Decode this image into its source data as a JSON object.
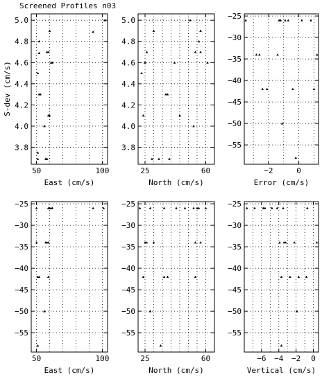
{
  "title": "Screened Profiles n03",
  "chart_data": [
    {
      "type": "scatter",
      "xlabel": "East (cm/s)",
      "ylabel": "S-dev (cm/s)",
      "xlim": [
        46,
        104
      ],
      "ylim": [
        3.64,
        5.06
      ],
      "xticks": [
        50,
        100
      ],
      "xtick_labels": [
        "50",
        "100"
      ],
      "xgrid": [
        50,
        60,
        70,
        80,
        90,
        100
      ],
      "yticks": [
        3.8,
        4.0,
        4.2,
        4.4,
        4.6,
        4.8,
        5.0
      ],
      "ytick_labels": [
        "3.8",
        "4.0",
        "4.2",
        "4.4",
        "4.6",
        "4.8",
        "5.0"
      ],
      "points": [
        [
          51,
          3.69
        ],
        [
          51,
          3.75
        ],
        [
          51,
          4.5
        ],
        [
          52,
          4.3
        ],
        [
          52,
          4.69
        ],
        [
          52,
          4.8
        ],
        [
          53,
          4.3
        ],
        [
          56,
          4.0
        ],
        [
          57,
          3.69
        ],
        [
          58,
          3.69
        ],
        [
          58,
          4.7
        ],
        [
          59,
          4.1
        ],
        [
          59,
          4.7
        ],
        [
          60,
          4.1
        ],
        [
          60,
          4.9
        ],
        [
          61,
          4.6
        ],
        [
          62,
          4.6
        ],
        [
          93,
          4.89
        ],
        [
          102,
          5.0
        ]
      ]
    },
    {
      "type": "scatter",
      "xlabel": "North (cm/s)",
      "ylabel": "",
      "xlim": [
        21,
        65
      ],
      "ylim": [
        3.64,
        5.06
      ],
      "xticks": [
        25,
        60
      ],
      "xtick_labels": [
        "25",
        "60"
      ],
      "xgrid": [
        25,
        30,
        35,
        40,
        45,
        50,
        55,
        60
      ],
      "yticks": [
        3.8,
        4.0,
        4.2,
        4.4,
        4.6,
        4.8,
        5.0
      ],
      "ytick_labels": [
        "3.8",
        "4.0",
        "4.2",
        "4.4",
        "4.6",
        "4.8",
        "5.0"
      ],
      "points": [
        [
          23,
          4.5
        ],
        [
          24,
          4.1
        ],
        [
          25,
          4.6
        ],
        [
          26,
          4.7
        ],
        [
          29,
          3.69
        ],
        [
          30,
          4.9
        ],
        [
          33,
          3.69
        ],
        [
          37,
          4.3
        ],
        [
          38,
          4.3
        ],
        [
          39,
          3.69
        ],
        [
          42,
          4.6
        ],
        [
          45,
          4.1
        ],
        [
          51,
          5.0
        ],
        [
          53,
          4.0
        ],
        [
          54,
          4.7
        ],
        [
          56,
          4.8
        ],
        [
          57,
          4.9
        ],
        [
          57,
          4.7
        ],
        [
          61,
          4.6
        ]
      ]
    },
    {
      "type": "scatter",
      "xlabel": "Error (cm/s)",
      "ylabel": "",
      "xlim": [
        -3.6,
        1.3
      ],
      "ylim": [
        -59.5,
        -24.5
      ],
      "xticks": [
        -2,
        0
      ],
      "xtick_labels": [
        "−2",
        "0"
      ],
      "xgrid": [
        -3,
        -2,
        -1,
        0,
        1
      ],
      "yticks": [
        -55,
        -50,
        -45,
        -40,
        -35,
        -30,
        -25
      ],
      "ytick_labels": [
        "−55",
        "−50",
        "−45",
        "−40",
        "−35",
        "−30",
        "−25"
      ],
      "points": [
        [
          -3.5,
          -26
        ],
        [
          -2.8,
          -34
        ],
        [
          -2.6,
          -34
        ],
        [
          -2.4,
          -42
        ],
        [
          -2.1,
          -42
        ],
        [
          -1.4,
          -34
        ],
        [
          -1.3,
          -26
        ],
        [
          -1.2,
          -26
        ],
        [
          -1.1,
          -50
        ],
        [
          -0.9,
          -26
        ],
        [
          -0.7,
          -26
        ],
        [
          -0.4,
          -42
        ],
        [
          -0.2,
          -58
        ],
        [
          0.2,
          -26
        ],
        [
          0.8,
          -26
        ],
        [
          1.0,
          -42
        ],
        [
          1.2,
          -34
        ]
      ]
    },
    {
      "type": "scatter",
      "xlabel": "East (cm/s)",
      "ylabel": "",
      "xlim": [
        46,
        104
      ],
      "ylim": [
        -59.5,
        -24.5
      ],
      "xticks": [
        50,
        100
      ],
      "xtick_labels": [
        "50",
        "100"
      ],
      "xgrid": [
        50,
        60,
        70,
        80,
        90,
        100
      ],
      "yticks": [
        -55,
        -50,
        -45,
        -40,
        -35,
        -30,
        -25
      ],
      "ytick_labels": [
        "−55",
        "−50",
        "−45",
        "−40",
        "−35",
        "−30",
        "−25"
      ],
      "points": [
        [
          50,
          -26
        ],
        [
          50,
          -34
        ],
        [
          51,
          -42
        ],
        [
          51,
          -58
        ],
        [
          52,
          -42
        ],
        [
          56,
          -50
        ],
        [
          57,
          -34
        ],
        [
          58,
          -34
        ],
        [
          59,
          -26
        ],
        [
          59,
          -34
        ],
        [
          59,
          -42
        ],
        [
          60,
          -26
        ],
        [
          61,
          -26
        ],
        [
          62,
          -26
        ],
        [
          93,
          -26
        ],
        [
          101,
          -26
        ]
      ]
    },
    {
      "type": "scatter",
      "xlabel": "North (cm/s)",
      "ylabel": "",
      "xlim": [
        21,
        65
      ],
      "ylim": [
        -59.5,
        -24.5
      ],
      "xticks": [
        25,
        60
      ],
      "xtick_labels": [
        "25",
        "60"
      ],
      "xgrid": [
        25,
        30,
        35,
        40,
        45,
        50,
        55,
        60
      ],
      "yticks": [
        -55,
        -50,
        -45,
        -40,
        -35,
        -30,
        -25
      ],
      "ytick_labels": [
        "−55",
        "−50",
        "−45",
        "−40",
        "−35",
        "−30",
        "−25"
      ],
      "points": [
        [
          22,
          -26
        ],
        [
          24,
          -42
        ],
        [
          25,
          -34
        ],
        [
          26,
          -34
        ],
        [
          28,
          -26
        ],
        [
          28,
          -50
        ],
        [
          30,
          -34
        ],
        [
          34,
          -58
        ],
        [
          36,
          -26
        ],
        [
          36,
          -42
        ],
        [
          38,
          -42
        ],
        [
          43,
          -26
        ],
        [
          48,
          -26
        ],
        [
          53,
          -26
        ],
        [
          54,
          -34
        ],
        [
          54,
          -42
        ],
        [
          55,
          -26
        ],
        [
          56,
          -26
        ],
        [
          57,
          -34
        ],
        [
          60,
          -26
        ]
      ]
    },
    {
      "type": "scatter",
      "xlabel": "Vertical (cm/s)",
      "ylabel": "",
      "xlim": [
        -8,
        0.6
      ],
      "ylim": [
        -59.5,
        -24.5
      ],
      "xticks": [
        -6,
        -4,
        -2,
        0
      ],
      "xtick_labels": [
        "−6",
        "−4",
        "−2",
        "0"
      ],
      "xgrid": [
        -8,
        -7,
        -6,
        -5,
        -4,
        -3,
        -2,
        -1,
        0
      ],
      "yticks": [
        -55,
        -50,
        -45,
        -40,
        -35,
        -30,
        -25
      ],
      "ytick_labels": [
        "−55",
        "−50",
        "−45",
        "−40",
        "−35",
        "−30",
        "−25"
      ],
      "points": [
        [
          -7.7,
          -26
        ],
        [
          -6.8,
          -26
        ],
        [
          -5.8,
          -26
        ],
        [
          -5.6,
          -26
        ],
        [
          -4.8,
          -26
        ],
        [
          -4.2,
          -26
        ],
        [
          -3.9,
          -34
        ],
        [
          -3.7,
          -42
        ],
        [
          -3.7,
          -58
        ],
        [
          -3.5,
          -26
        ],
        [
          -3.4,
          -34
        ],
        [
          -3.2,
          -34
        ],
        [
          -2.7,
          -42
        ],
        [
          -2.2,
          -34
        ],
        [
          -1.9,
          -50
        ],
        [
          -1.7,
          -42
        ],
        [
          -0.8,
          -42
        ],
        [
          -0.7,
          -26
        ],
        [
          0.4,
          -34
        ]
      ]
    }
  ]
}
